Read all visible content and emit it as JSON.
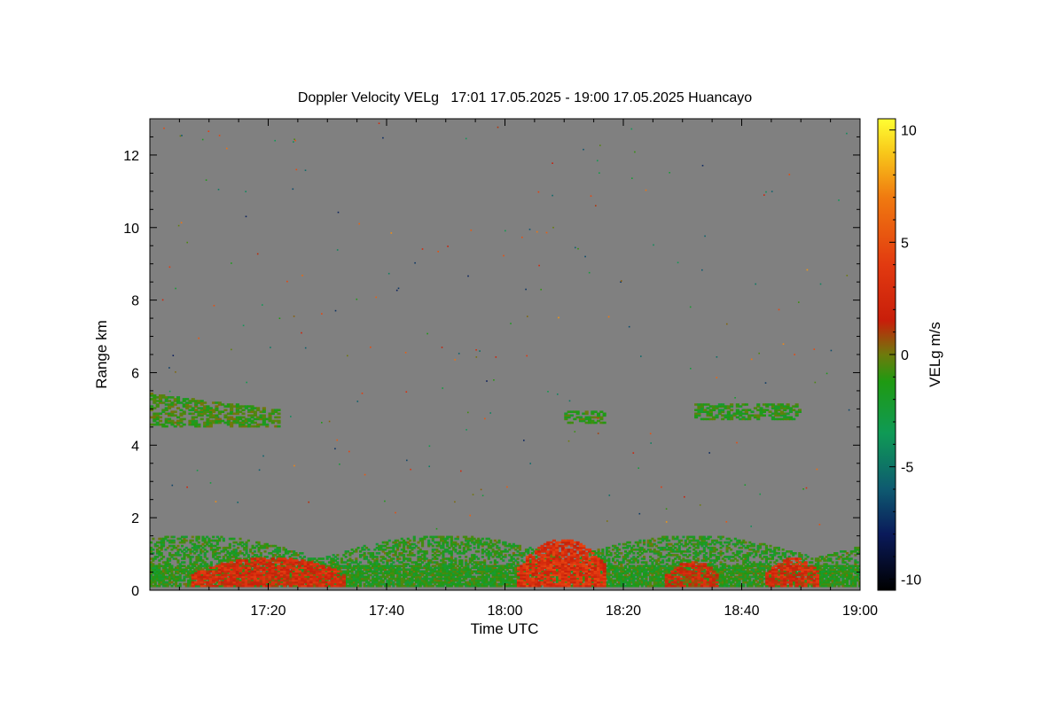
{
  "chart_data": {
    "type": "heatmap",
    "title": "Doppler Velocity VELg   17:01 17.05.2025 - 19:00 17.05.2025 Huancayo",
    "xlabel": "Time UTC",
    "ylabel": "Range km",
    "colorbar_label": "VELg m/s",
    "x_range_minutes_utc": [
      1020,
      1140
    ],
    "x_ticks": [
      {
        "value": 1040,
        "label": "17:20"
      },
      {
        "value": 1060,
        "label": "17:40"
      },
      {
        "value": 1080,
        "label": "18:00"
      },
      {
        "value": 1100,
        "label": "18:20"
      },
      {
        "value": 1120,
        "label": "18:40"
      },
      {
        "value": 1140,
        "label": "19:00"
      }
    ],
    "y_range_km": [
      0,
      13
    ],
    "y_ticks": [
      {
        "value": 0,
        "label": "0"
      },
      {
        "value": 2,
        "label": "2"
      },
      {
        "value": 4,
        "label": "4"
      },
      {
        "value": 6,
        "label": "6"
      },
      {
        "value": 8,
        "label": "8"
      },
      {
        "value": 10,
        "label": "10"
      },
      {
        "value": 12,
        "label": "12"
      }
    ],
    "colorbar_range": [
      -10.5,
      10.5
    ],
    "colorbar_ticks": [
      {
        "value": 10,
        "label": "10"
      },
      {
        "value": 5,
        "label": "5"
      },
      {
        "value": 0,
        "label": "0"
      },
      {
        "value": -5,
        "label": "-5"
      },
      {
        "value": -10,
        "label": "-10"
      }
    ],
    "colormap": [
      {
        "v": -10.5,
        "color": "#000000"
      },
      {
        "v": -8,
        "color": "#0a1a5a"
      },
      {
        "v": -6,
        "color": "#0e5a70"
      },
      {
        "v": -3.5,
        "color": "#0f9a55"
      },
      {
        "v": -1.2,
        "color": "#1f9a12"
      },
      {
        "v": 0,
        "color": "#6e7a0c"
      },
      {
        "v": 1.5,
        "color": "#c81e0a"
      },
      {
        "v": 4,
        "color": "#e23a10"
      },
      {
        "v": 7,
        "color": "#f07a10"
      },
      {
        "v": 9,
        "color": "#f8c81a"
      },
      {
        "v": 10.5,
        "color": "#ffff33"
      }
    ],
    "background_color": "#808080",
    "echo_regions": [
      {
        "name": "elevated layer early",
        "t_start": 1020,
        "t_end": 1042,
        "range_km": [
          4.5,
          5.4
        ],
        "velocity_ms": -0.8
      },
      {
        "name": "elevated patch mid",
        "t_start": 1090,
        "t_end": 1097,
        "range_km": [
          4.6,
          4.9
        ],
        "velocity_ms": -1.0
      },
      {
        "name": "elevated patches late",
        "t_start": 1112,
        "t_end": 1130,
        "range_km": [
          4.7,
          5.1
        ],
        "velocity_ms": -1.2
      },
      {
        "name": "boundary layer",
        "t_start": 1020,
        "t_end": 1140,
        "range_km": [
          0.1,
          1.5
        ],
        "velocity_ms": -1.5
      },
      {
        "name": "upward cells 17:05-17:35",
        "t_start": 1027,
        "t_end": 1053,
        "range_km": [
          0.1,
          0.9
        ],
        "velocity_ms": 2.5
      },
      {
        "name": "upward cells 18:00-18:20",
        "t_start": 1082,
        "t_end": 1097,
        "range_km": [
          0.1,
          1.4
        ],
        "velocity_ms": 3.0
      },
      {
        "name": "upward cells 18:25-18:35",
        "t_start": 1107,
        "t_end": 1116,
        "range_km": [
          0.1,
          0.8
        ],
        "velocity_ms": 2.0
      },
      {
        "name": "upward cells 18:45-18:52",
        "t_start": 1124,
        "t_end": 1133,
        "range_km": [
          0.1,
          0.9
        ],
        "velocity_ms": 2.5
      }
    ]
  }
}
